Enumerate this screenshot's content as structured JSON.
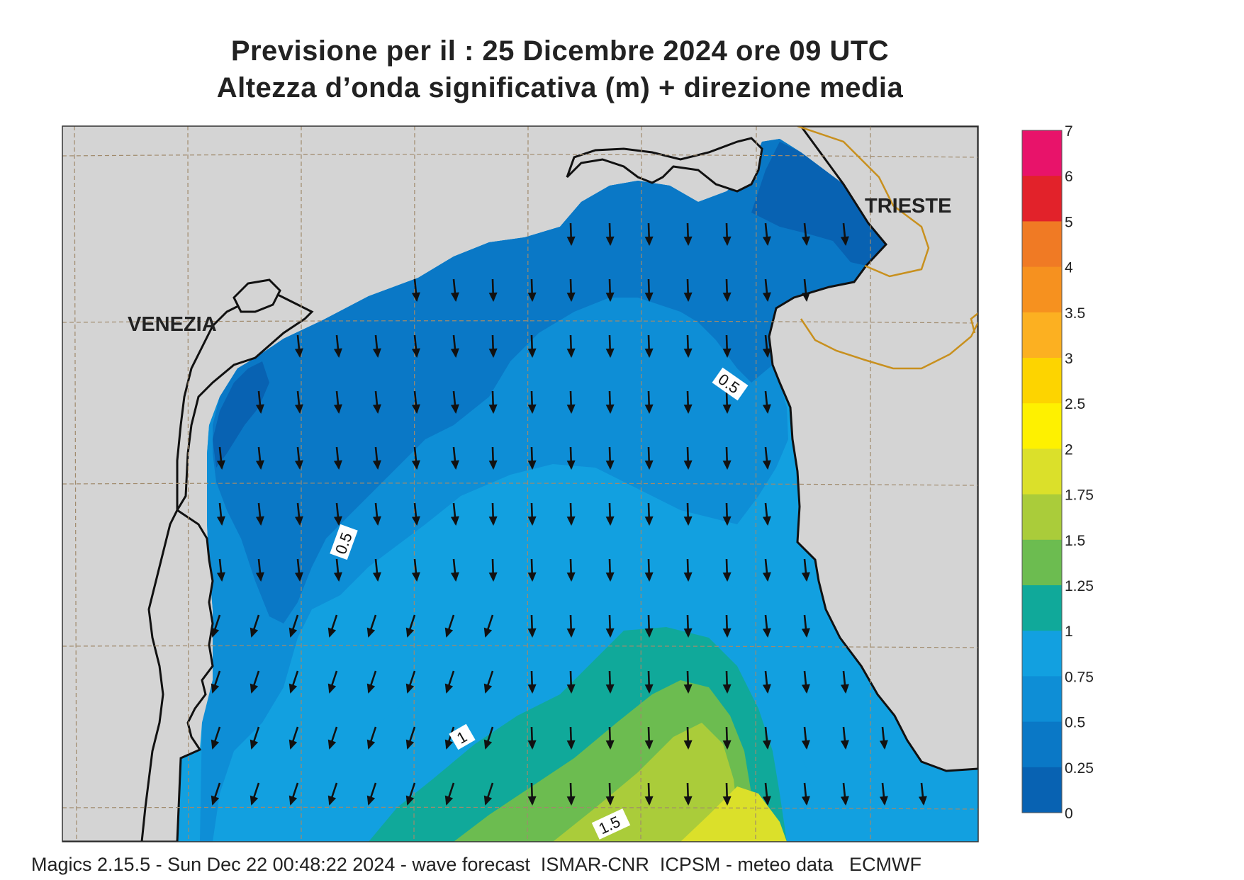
{
  "header": {
    "line1": "Previsione per il  :  25 Dicembre  2024   ore 09 UTC",
    "line2": "Altezza d’onda significativa (m) + direzione media"
  },
  "footer": {
    "text": "Magics 2.15.5 - Sun Dec 22 00:48:22 2024 - wave forecast  ISMAR-CNR  ICPSM - meteo data   ECMWF"
  },
  "map": {
    "cities": [
      "VENEZIA",
      "TRIESTE"
    ],
    "contour_labels": [
      "0.5",
      "0.5",
      "0.5",
      "1",
      "1.5"
    ],
    "colors": {
      "land": "#d4d4d4",
      "coast": "#111111",
      "border": "#c8901e",
      "grid": "#a08a6c",
      "arrow": "#111111"
    },
    "wave_direction": "N-S (arrows pointing south)"
  },
  "colorbar": {
    "labels": [
      "7",
      "6",
      "5",
      "4",
      "3.5",
      "3",
      "2.5",
      "2",
      "1.75",
      "1.5",
      "1.25",
      "1",
      "0.75",
      "0.5",
      "0.25",
      "0"
    ],
    "colors": [
      "#e8136a",
      "#e2222a",
      "#f07a24",
      "#f6911f",
      "#fcb021",
      "#fdd400",
      "#fef100",
      "#dbe02a",
      "#aacc3a",
      "#6cbc50",
      "#10a99a",
      "#12a0e0",
      "#0e8ed6",
      "#0a78c6",
      "#0862b2"
    ]
  }
}
